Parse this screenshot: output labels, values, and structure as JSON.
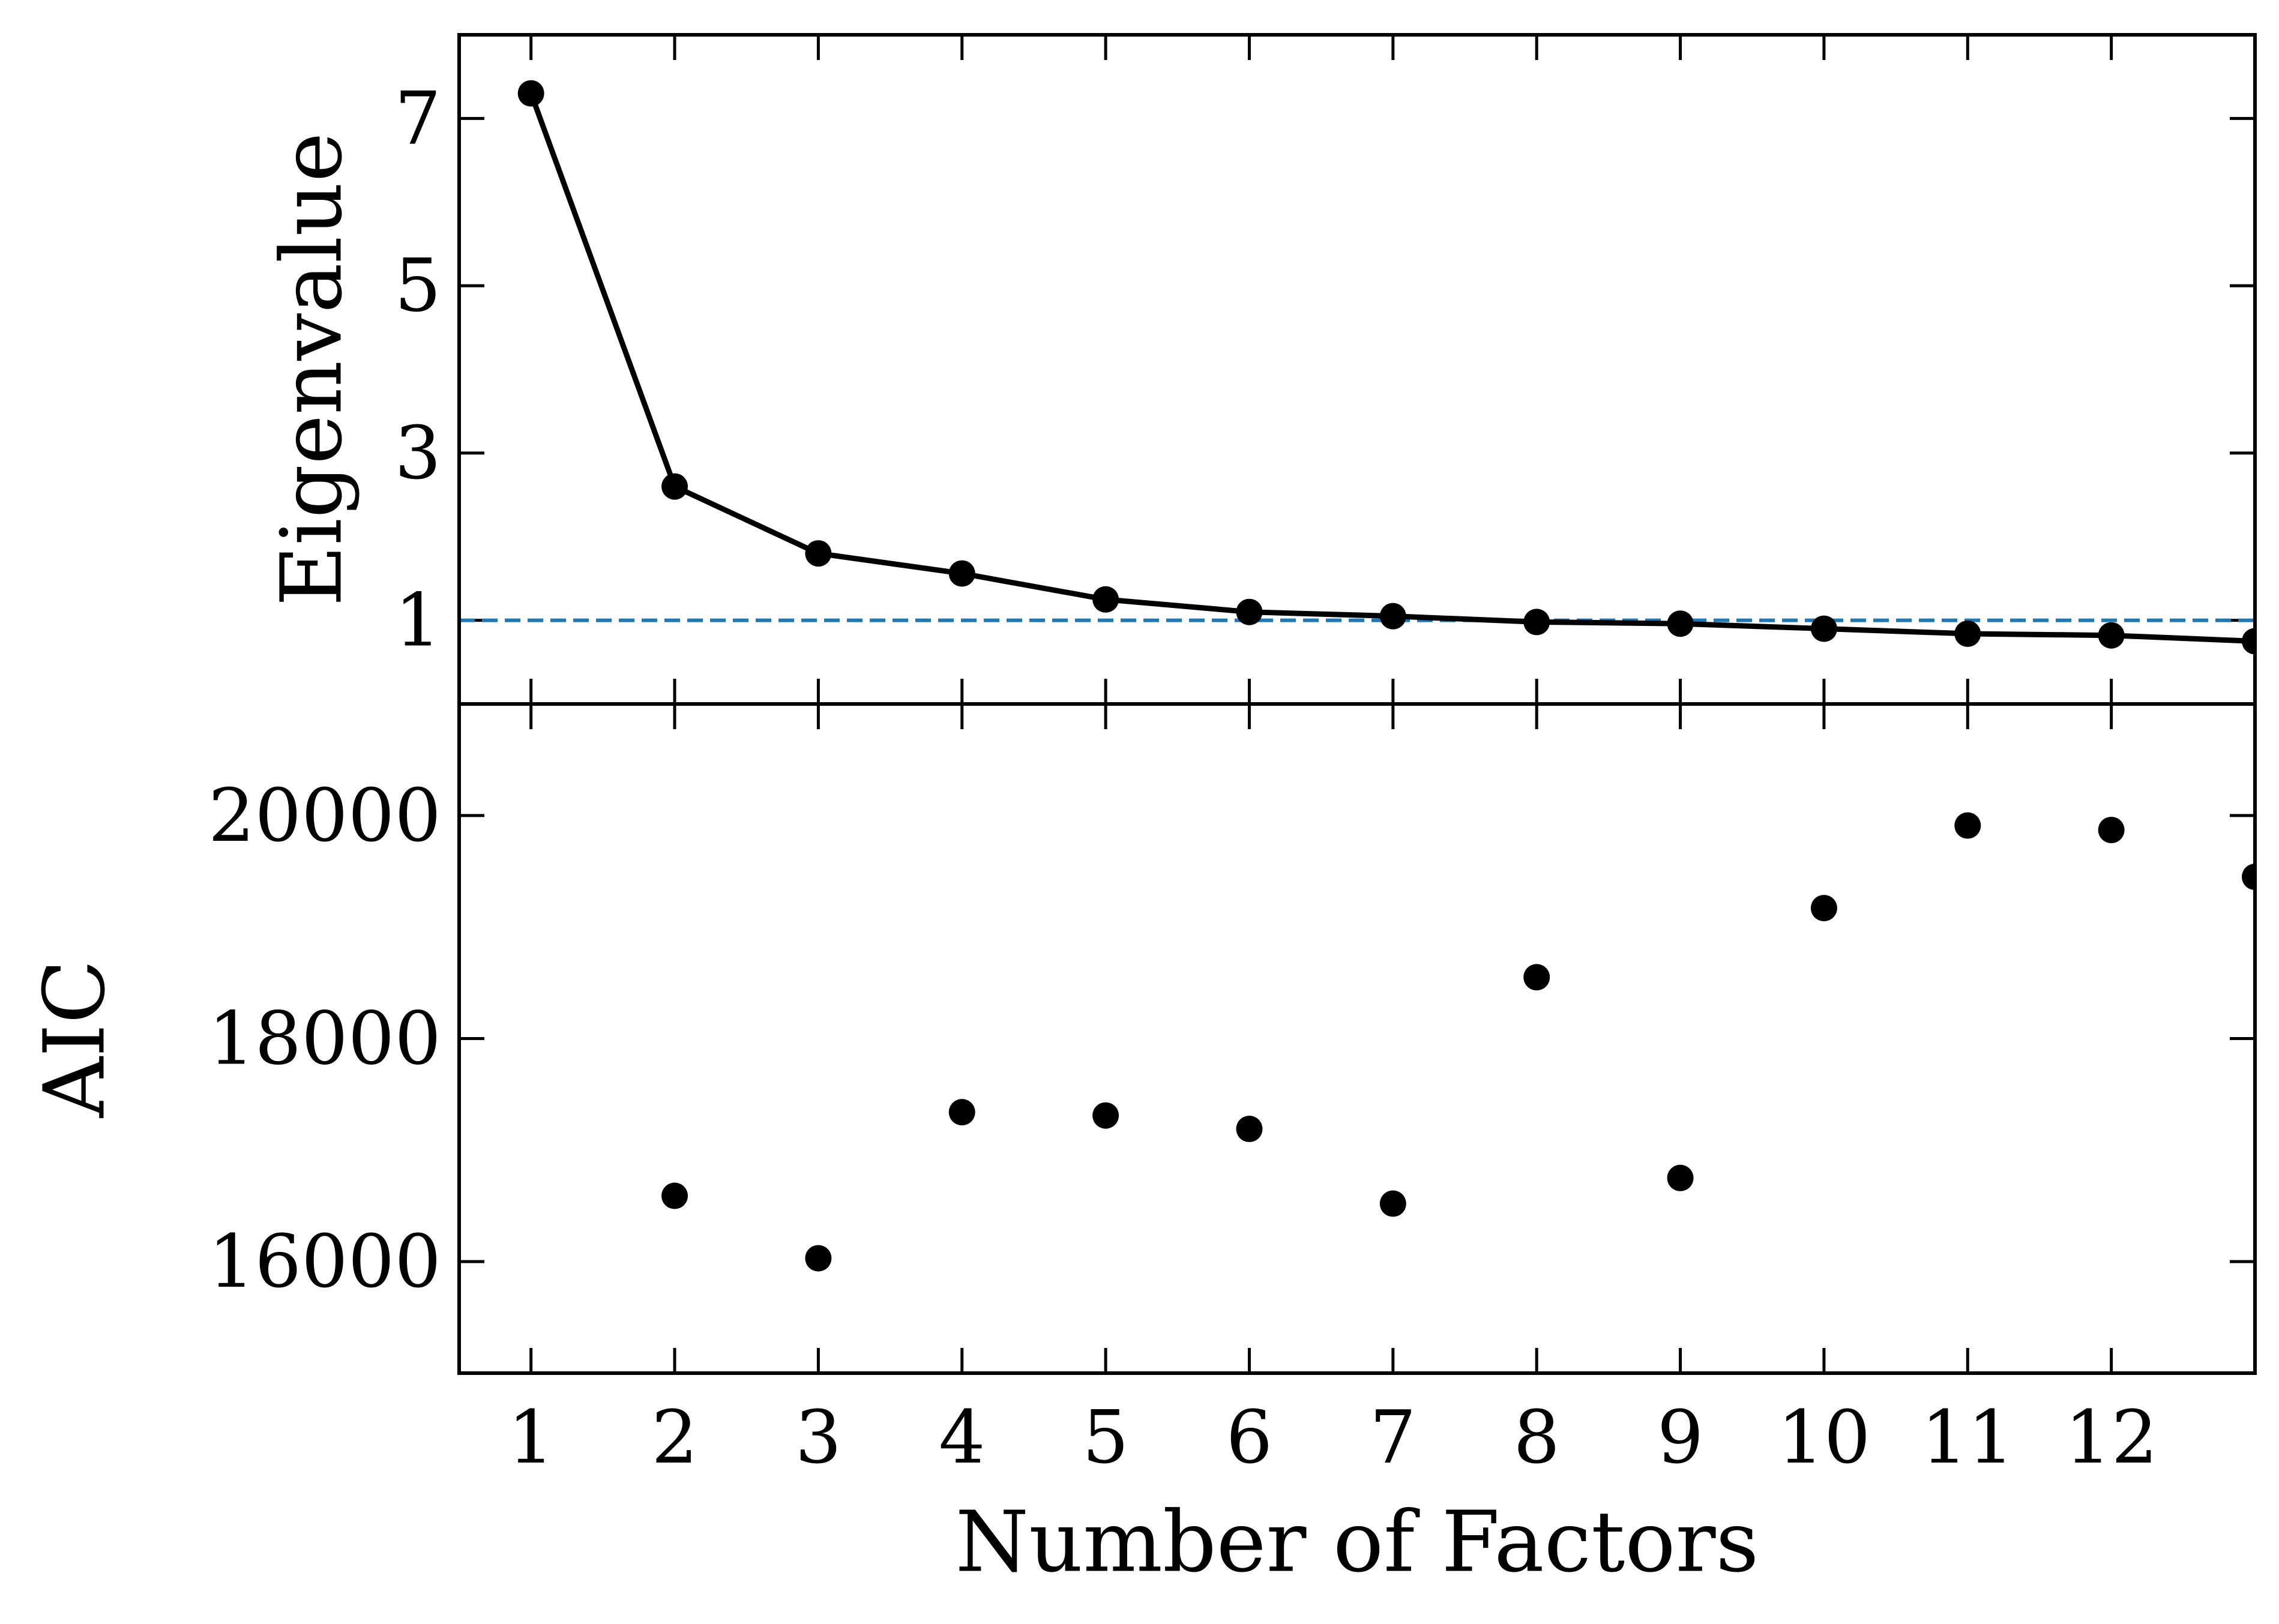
{
  "chart_data": [
    {
      "type": "line",
      "ylabel": "Eigenvalue",
      "x": [
        1,
        2,
        3,
        4,
        5,
        6,
        7,
        8,
        9,
        10,
        11,
        12,
        13
      ],
      "y": [
        7.3,
        2.6,
        1.8,
        1.56,
        1.25,
        1.1,
        1.05,
        0.98,
        0.96,
        0.9,
        0.84,
        0.82,
        0.75
      ],
      "xlim": [
        0.5,
        13
      ],
      "ylim": [
        0,
        8
      ],
      "yticks": [
        1,
        3,
        5,
        7
      ],
      "reference_line": {
        "y": 1,
        "style": "dashed",
        "color": "#1f77b4"
      },
      "line_color": "#000000",
      "grid": false
    },
    {
      "type": "scatter",
      "ylabel": "AIC",
      "xlabel": "Number of Factors",
      "x": [
        1,
        2,
        3,
        4,
        5,
        6,
        7,
        8,
        9,
        10,
        11,
        12,
        13
      ],
      "y": [
        null,
        16590,
        16030,
        17340,
        17310,
        17190,
        16520,
        18550,
        16750,
        19170,
        19910,
        19870,
        19450
      ],
      "xlim": [
        0.5,
        13
      ],
      "ylim": [
        15000,
        21000
      ],
      "yticks": [
        16000,
        18000,
        20000
      ],
      "xticks": [
        1,
        2,
        3,
        4,
        5,
        6,
        7,
        8,
        9,
        10,
        11,
        12
      ],
      "marker_color": "#000000",
      "grid": false
    }
  ]
}
